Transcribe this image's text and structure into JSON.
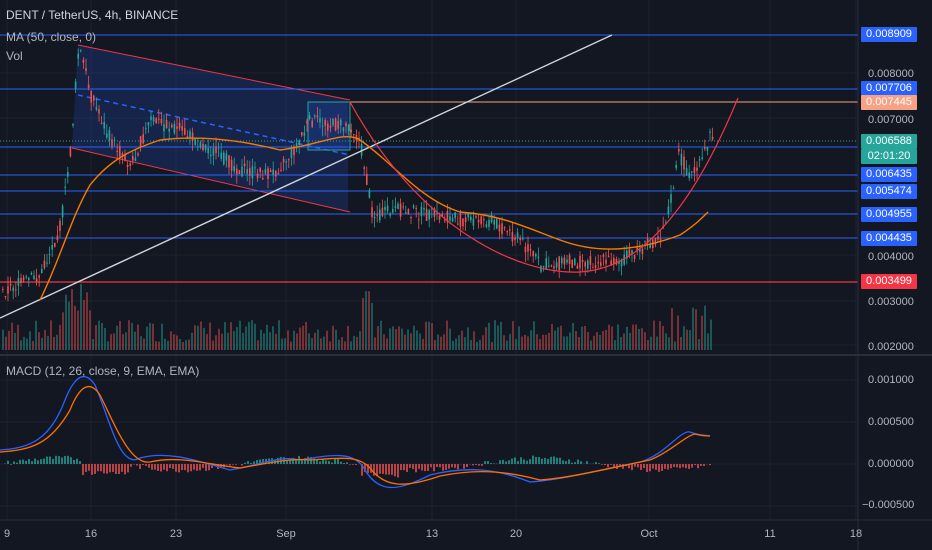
{
  "header": {
    "symbol": "DENT / TetherUS, 4h, BINANCE",
    "ma": "MA (50, close, 0)",
    "vol": "Vol",
    "macd": "MACD (12, 26, close, 9, EMA, EMA)"
  },
  "price_axis": {
    "ticks": [
      "0.008000",
      "0.007000",
      "0.004000",
      "0.003000",
      "0.002000"
    ]
  },
  "price_tags": [
    {
      "label": "0.008909",
      "color": "#2962ff"
    },
    {
      "label": "0.007706",
      "color": "#2962ff"
    },
    {
      "label": "0.007445",
      "color": "#f7a285"
    },
    {
      "label": "0.006588",
      "color": "#26a69a"
    },
    {
      "label": "02:01:20",
      "color": "#26a69a"
    },
    {
      "label": "0.006435",
      "color": "#2962ff"
    },
    {
      "label": "0.005474",
      "color": "#2962ff"
    },
    {
      "label": "0.004955",
      "color": "#2962ff"
    },
    {
      "label": "0.004435",
      "color": "#2962ff"
    },
    {
      "label": "0.003499",
      "color": "#f23645"
    }
  ],
  "macd_axis": {
    "ticks": [
      "0.001000",
      "0.000500",
      "0.000000",
      "−0.000500"
    ]
  },
  "time_axis": {
    "labels": [
      "9",
      "16",
      "23",
      "Sep",
      "13",
      "20",
      "Oct",
      "11",
      "18"
    ]
  },
  "colors": {
    "background": "#131722",
    "up": "#26a69a",
    "down": "#ef5350",
    "horizontal_level": "#2962ff",
    "ma": "#f57c00",
    "trendline": "#d1d4dc",
    "channel": "#2962ff",
    "macd_line": "#2962ff",
    "signal_line": "#ff6d00"
  }
}
